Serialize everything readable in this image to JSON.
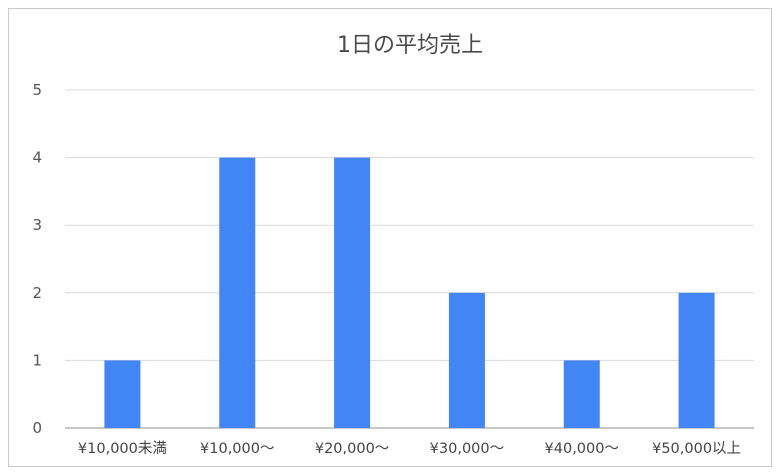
{
  "chart_data": {
    "type": "bar",
    "title": "1日の平均売上",
    "xlabel": "",
    "ylabel": "",
    "categories": [
      "¥10,000未満",
      "¥10,000～",
      "¥20,000～",
      "¥30,000～",
      "¥40,000～",
      "¥50,000以上"
    ],
    "values": [
      1,
      4,
      4,
      2,
      1,
      2
    ],
    "ylim": [
      0,
      5
    ],
    "yticks": [
      0,
      1,
      2,
      3,
      4,
      5
    ],
    "grid": true,
    "legend": "none",
    "bar_color": "#4285f4"
  }
}
